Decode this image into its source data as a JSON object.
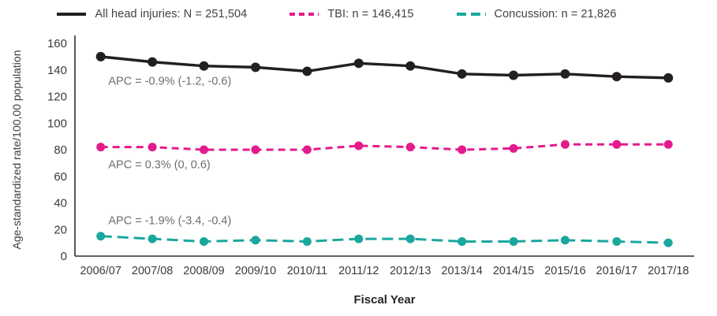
{
  "chart_data": {
    "type": "line",
    "title": "",
    "xlabel": "Fiscal Year",
    "ylabel": "Age-standardized rate/100,00 population",
    "ylim": [
      0,
      160
    ],
    "yticks": [
      0,
      20,
      40,
      60,
      80,
      100,
      120,
      140,
      160
    ],
    "grid": false,
    "legend_position": "top",
    "categories": [
      "2006/07",
      "2007/08",
      "2008/09",
      "2009/10",
      "2010/11",
      "2011/12",
      "2012/13",
      "2013/14",
      "2014/15",
      "2015/16",
      "2016/17",
      "2017/18"
    ],
    "series": [
      {
        "name": "All head injuries: N = 251,504",
        "color": "#231f20",
        "style": "solid",
        "dash": "",
        "width": 3.4,
        "marker": 6,
        "values": [
          150,
          146,
          143,
          142,
          139,
          145,
          143,
          137,
          136,
          137,
          135,
          134
        ]
      },
      {
        "name": "TBI: n = 146,415",
        "color": "#e31b8d",
        "style": "dashed",
        "dash": "9 6",
        "width": 3,
        "marker": 5.5,
        "values": [
          82,
          82,
          80,
          80,
          80,
          83,
          82,
          80,
          81,
          84,
          84,
          84
        ]
      },
      {
        "name": "Concussion: n = 21,826",
        "color": "#1aa79d",
        "style": "dashed",
        "dash": "14 7",
        "width": 3,
        "marker": 5.5,
        "values": [
          15,
          13,
          11,
          12,
          11,
          13,
          13,
          11,
          11,
          12,
          11,
          10
        ]
      }
    ],
    "annotations": [
      {
        "text": "APC = -0.9% (-1.2, -0.6)",
        "x": 0.054,
        "y": 129
      },
      {
        "text": "APC = 0.3% (0, 0.6)",
        "x": 0.054,
        "y": 66
      },
      {
        "text": "APC = -1.9% (-3.4, -0.4)",
        "x": 0.054,
        "y": 24
      }
    ]
  }
}
